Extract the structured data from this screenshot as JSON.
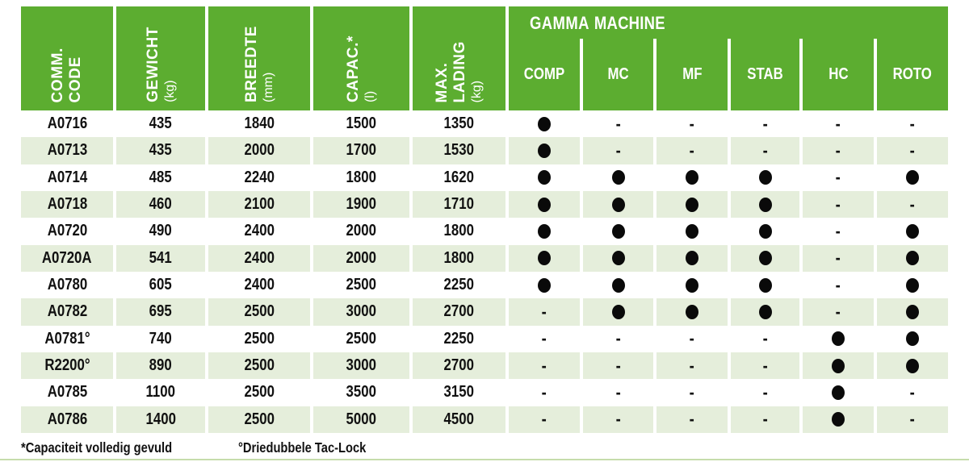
{
  "table": {
    "headers": [
      {
        "line1": "COMM.",
        "line2": "CODE",
        "unit": ""
      },
      {
        "line1": "GEWICHT",
        "line2": "",
        "unit": "(kg)"
      },
      {
        "line1": "BREEDTE",
        "line2": "",
        "unit": "(mm)"
      },
      {
        "line1": "CAPAC.*",
        "line2": "",
        "unit": "(l)"
      },
      {
        "line1": "MAX.",
        "line2": "LADING",
        "unit": "(kg)"
      }
    ],
    "gamma_group": {
      "title_strong": "GAMMA",
      "title_rest": "MACHINE"
    },
    "machine_columns": [
      "COMP",
      "MC",
      "MF",
      "STAB",
      "HC",
      "ROTO"
    ],
    "dash_char": "-",
    "rows": [
      {
        "code": "A0716",
        "gewicht": "435",
        "breedte": "1840",
        "capac": "1500",
        "max_lading": "1350",
        "machines": [
          true,
          false,
          false,
          false,
          false,
          false
        ]
      },
      {
        "code": "A0713",
        "gewicht": "435",
        "breedte": "2000",
        "capac": "1700",
        "max_lading": "1530",
        "machines": [
          true,
          false,
          false,
          false,
          false,
          false
        ]
      },
      {
        "code": "A0714",
        "gewicht": "485",
        "breedte": "2240",
        "capac": "1800",
        "max_lading": "1620",
        "machines": [
          true,
          true,
          true,
          true,
          false,
          true
        ]
      },
      {
        "code": "A0718",
        "gewicht": "460",
        "breedte": "2100",
        "capac": "1900",
        "max_lading": "1710",
        "machines": [
          true,
          true,
          true,
          true,
          false,
          false
        ]
      },
      {
        "code": "A0720",
        "gewicht": "490",
        "breedte": "2400",
        "capac": "2000",
        "max_lading": "1800",
        "machines": [
          true,
          true,
          true,
          true,
          false,
          true
        ]
      },
      {
        "code": "A0720A",
        "gewicht": "541",
        "breedte": "2400",
        "capac": "2000",
        "max_lading": "1800",
        "machines": [
          true,
          true,
          true,
          true,
          false,
          true
        ]
      },
      {
        "code": "A0780",
        "gewicht": "605",
        "breedte": "2400",
        "capac": "2500",
        "max_lading": "2250",
        "machines": [
          true,
          true,
          true,
          true,
          false,
          true
        ]
      },
      {
        "code": "A0782",
        "gewicht": "695",
        "breedte": "2500",
        "capac": "3000",
        "max_lading": "2700",
        "machines": [
          false,
          true,
          true,
          true,
          false,
          true
        ]
      },
      {
        "code": "A0781°",
        "gewicht": "740",
        "breedte": "2500",
        "capac": "2500",
        "max_lading": "2250",
        "machines": [
          false,
          false,
          false,
          false,
          true,
          true
        ]
      },
      {
        "code": "R2200°",
        "gewicht": "890",
        "breedte": "2500",
        "capac": "3000",
        "max_lading": "2700",
        "machines": [
          false,
          false,
          false,
          false,
          true,
          true
        ]
      },
      {
        "code": "A0785",
        "gewicht": "1100",
        "breedte": "2500",
        "capac": "3500",
        "max_lading": "3150",
        "machines": [
          false,
          false,
          false,
          false,
          true,
          false
        ]
      },
      {
        "code": "A0786",
        "gewicht": "1400",
        "breedte": "2500",
        "capac": "5000",
        "max_lading": "4500",
        "machines": [
          false,
          false,
          false,
          false,
          true,
          false
        ]
      }
    ]
  },
  "footer": {
    "note_capacity": "*Capaciteit volledig gevuld",
    "note_taclock": "°Driedubbele Tac-Lock"
  },
  "colors": {
    "header_green": "#5cad30",
    "stripe_green": "#e5eedb",
    "bottom_line": "#c6dcab",
    "dot_black": "#0a0a0a"
  }
}
